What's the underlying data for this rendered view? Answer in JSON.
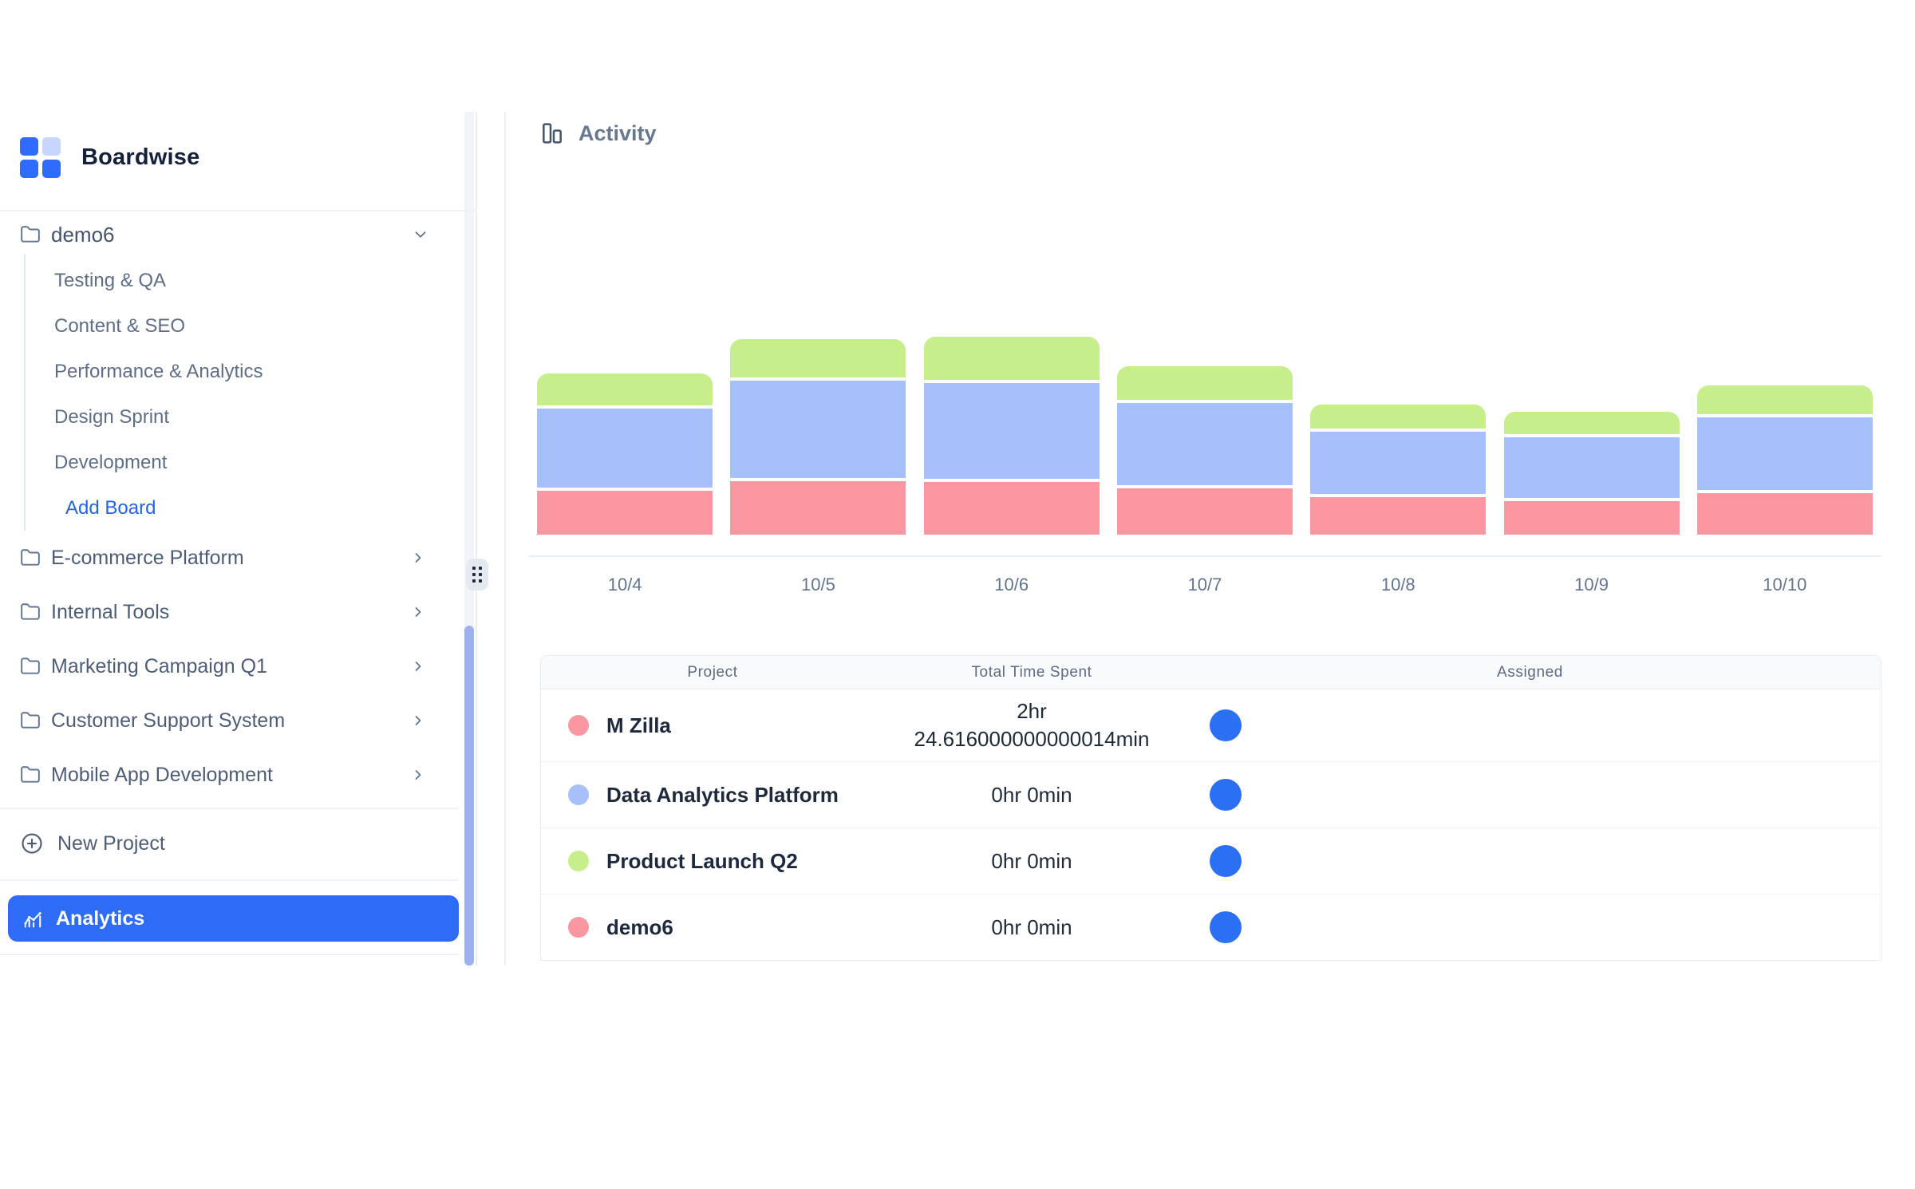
{
  "brand": {
    "name": "Boardwise"
  },
  "sidebar": {
    "project_group": {
      "label": "demo6",
      "boards": [
        "Testing & QA",
        "Content & SEO",
        "Performance & Analytics",
        "Design Sprint",
        "Development"
      ],
      "add_board_label": "Add Board"
    },
    "folders": [
      "E-commerce Platform",
      "Internal Tools",
      "Marketing Campaign Q1",
      "Customer Support System",
      "Mobile App Development"
    ],
    "new_project_label": "New Project",
    "analytics_label": "Analytics"
  },
  "main": {
    "title": "Activity"
  },
  "chart_data": {
    "type": "bar",
    "stacked": true,
    "title": "Activity",
    "xlabel": "",
    "ylabel": "",
    "grid": false,
    "legend": "none (colors match project dots in table below)",
    "categories": [
      "10/4",
      "10/5",
      "10/6",
      "10/7",
      "10/8",
      "10/9",
      "10/10"
    ],
    "units": "relative height (no y-axis shown in UI)",
    "series": [
      {
        "key": "pink",
        "name": "M Zilla / demo6",
        "color": "#fa97a1",
        "values": [
          55,
          67,
          66,
          58,
          47,
          42,
          52
        ]
      },
      {
        "key": "blue",
        "name": "Data Analytics Platform",
        "color": "#a5c0fa",
        "values": [
          99,
          122,
          120,
          103,
          78,
          76,
          91
        ]
      },
      {
        "key": "green",
        "name": "Product Launch Q2",
        "color": "#c6ef8c",
        "values": [
          40,
          48,
          54,
          42,
          30,
          28,
          36
        ]
      }
    ],
    "stack_order_bottom_to_top": [
      "pink",
      "blue",
      "green"
    ]
  },
  "table": {
    "columns": [
      "Project",
      "Total Time Spent",
      "Assigned"
    ],
    "rows": [
      {
        "project": "M Zilla",
        "dot_color": "#fa97a1",
        "time_lines": [
          "2hr",
          "24.616000000000014min"
        ]
      },
      {
        "project": "Data Analytics Platform",
        "dot_color": "#a5c0fa",
        "time_lines": [
          "0hr 0min"
        ]
      },
      {
        "project": "Product Launch Q2",
        "dot_color": "#c6ef8c",
        "time_lines": [
          "0hr 0min"
        ]
      },
      {
        "project": "demo6",
        "dot_color": "#fa97a1",
        "time_lines": [
          "0hr 0min"
        ]
      }
    ]
  },
  "colors": {
    "accent_blue": "#2e6bf6",
    "assigned_avatar": "#2b6ff2",
    "logo_blue": "#2f6bfe",
    "logo_light_blue": "#c6d6fe",
    "add_board_link": "#2563eb",
    "scrollbar_thumb": "#9db1f0",
    "bar_pink": "#fa97a1",
    "bar_blue": "#a5c0fa",
    "bar_green": "#c6ef8c"
  },
  "icons": {
    "logo": "four-squares-grid",
    "folder": "folder-outline",
    "chevron_down": "chevron-down",
    "chevron_right": "chevron-right",
    "plus_circle": "circled-plus",
    "analytics": "line-chart-with-points",
    "activity": "bar-chart-columns",
    "grip": "six-dot-drag-handle"
  }
}
